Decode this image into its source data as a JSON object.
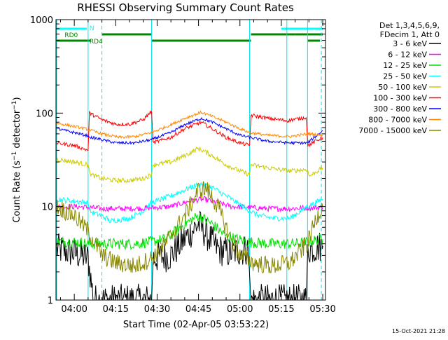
{
  "chart_data": {
    "type": "line",
    "title": "RHESSI Observing Summary Count Rates",
    "ylabel_main": "Count Rate (s",
    "ylabel_sup": "−1",
    "ylabel_mid": " detector",
    "ylabel_sup2": "−1",
    "ylabel_end": ")",
    "xlabel": "Start Time (02-Apr-05 03:53:22)",
    "footer": "15-Oct-2021 21:28",
    "y_scale": "log",
    "ylim": [
      1,
      1000
    ],
    "xlim": [
      "03:53:22",
      "05:31:00"
    ],
    "y_ticks": [
      "1",
      "10",
      "100",
      "1000"
    ],
    "x_ticks": [
      {
        "label": "04:00",
        "t": 240
      },
      {
        "label": "04:15",
        "t": 255
      },
      {
        "label": "04:30",
        "t": 270
      },
      {
        "label": "04:45",
        "t": 285
      },
      {
        "label": "05:00",
        "t": 300
      },
      {
        "label": "05:15",
        "t": 315
      },
      {
        "label": "05:30",
        "t": 330
      }
    ],
    "legend": {
      "header": [
        "Det 1,3,4,5,6,9,",
        "FDecim 1, Att 0"
      ],
      "entries": [
        {
          "label": "3 - 6 keV",
          "color": "#000000"
        },
        {
          "label": "6 - 12 keV",
          "color": "#ff00ff"
        },
        {
          "label": "12 - 25 keV",
          "color": "#00dd00"
        },
        {
          "label": "25 - 50 keV",
          "color": "#00ffff"
        },
        {
          "label": "50 - 100 keV",
          "color": "#cccc00"
        },
        {
          "label": "100 - 300 keV",
          "color": "#ff0000"
        },
        {
          "label": "300 - 800 keV",
          "color": "#0000ff"
        },
        {
          "label": "800 - 7000 keV",
          "color": "#ff8800"
        },
        {
          "label": "7000 - 15000 keV",
          "color": "#888800"
        }
      ]
    },
    "flags": [
      {
        "label": "N",
        "color": "#00ffff",
        "segments": [
          [
            233.6,
            244.5
          ],
          [
            315,
            330
          ]
        ]
      },
      {
        "label": "RD0",
        "color": "#008800",
        "segments": [
          [
            250,
            268
          ],
          [
            304,
            320
          ],
          [
            320,
            330
          ]
        ]
      },
      {
        "label": "RD4",
        "color": "#008800",
        "segments": [
          [
            233.6,
            246
          ],
          [
            268,
            304
          ],
          [
            324.5,
            329
          ]
        ]
      }
    ],
    "vlines_solid": [
      233.6,
      245,
      268,
      303.5,
      317,
      324.5
    ],
    "vlines_dashed": [
      250,
      329.5
    ],
    "series": [
      {
        "name": "3 - 6 keV",
        "color": "#000000",
        "points": [
          [
            233.6,
            3.5
          ],
          [
            240,
            3.2
          ],
          [
            245,
            2.8
          ],
          [
            247,
            1.0
          ],
          [
            260,
            1.0
          ],
          [
            268,
            1.0
          ],
          [
            268.5,
            2.8
          ],
          [
            275,
            3.0
          ],
          [
            280,
            4.5
          ],
          [
            285,
            6.5
          ],
          [
            288,
            5
          ],
          [
            292,
            3.5
          ],
          [
            296,
            3.2
          ],
          [
            303,
            3.5
          ],
          [
            304,
            1.0
          ],
          [
            324,
            1.0
          ],
          [
            324.6,
            3.5
          ],
          [
            330,
            3.8
          ]
        ]
      },
      {
        "name": "6 - 12 keV",
        "color": "#ff00ff",
        "points": [
          [
            233.6,
            10
          ],
          [
            240,
            10
          ],
          [
            245,
            9.8
          ],
          [
            250,
            9.5
          ],
          [
            260,
            9.5
          ],
          [
            268,
            9.7
          ],
          [
            275,
            10
          ],
          [
            282,
            11.5
          ],
          [
            287,
            12
          ],
          [
            292,
            11
          ],
          [
            297,
            10
          ],
          [
            303,
            9.8
          ],
          [
            310,
            9.5
          ],
          [
            318,
            9.5
          ],
          [
            324.5,
            9.7
          ],
          [
            330,
            9.8
          ]
        ]
      },
      {
        "name": "12 - 25 keV",
        "color": "#00dd00",
        "points": [
          [
            233.6,
            4.2
          ],
          [
            240,
            4.2
          ],
          [
            245,
            4.0
          ],
          [
            250,
            4.0
          ],
          [
            262,
            4.0
          ],
          [
            268,
            4.2
          ],
          [
            273,
            4.5
          ],
          [
            280,
            6.5
          ],
          [
            285,
            8
          ],
          [
            290,
            6.5
          ],
          [
            295,
            4.8
          ],
          [
            303,
            4.2
          ],
          [
            310,
            4.0
          ],
          [
            320,
            4.0
          ],
          [
            324.5,
            4.2
          ],
          [
            330,
            4.5
          ]
        ]
      },
      {
        "name": "25 - 50 keV",
        "color": "#00ffff",
        "points": [
          [
            233.6,
            12
          ],
          [
            245,
            11
          ],
          [
            245.5,
            9
          ],
          [
            247,
            8.5
          ],
          [
            250,
            8
          ],
          [
            253,
            7
          ],
          [
            260,
            7.5
          ],
          [
            265,
            9
          ],
          [
            268,
            11
          ],
          [
            275,
            13
          ],
          [
            282,
            16
          ],
          [
            286,
            17.5
          ],
          [
            290,
            16
          ],
          [
            295,
            13
          ],
          [
            300,
            10.5
          ],
          [
            303.5,
            9
          ],
          [
            307,
            8
          ],
          [
            312,
            7.5
          ],
          [
            318,
            7.5
          ],
          [
            324.5,
            10
          ],
          [
            330,
            12
          ]
        ]
      },
      {
        "name": "50 - 100 keV",
        "color": "#cccc00",
        "points": [
          [
            233.6,
            32
          ],
          [
            240,
            30
          ],
          [
            245,
            28
          ],
          [
            246,
            22
          ],
          [
            250,
            20
          ],
          [
            255,
            19
          ],
          [
            260,
            19
          ],
          [
            265,
            20
          ],
          [
            268,
            22
          ],
          [
            268.5,
            28
          ],
          [
            275,
            30
          ],
          [
            280,
            35
          ],
          [
            285,
            42
          ],
          [
            290,
            35
          ],
          [
            295,
            28
          ],
          [
            300,
            24
          ],
          [
            303.5,
            22
          ],
          [
            304,
            28
          ],
          [
            310,
            26
          ],
          [
            318,
            24
          ],
          [
            324.5,
            25
          ],
          [
            325,
            21
          ],
          [
            330,
            26
          ]
        ]
      },
      {
        "name": "100 - 300 keV",
        "color": "#ff0000",
        "points": [
          [
            233.6,
            48
          ],
          [
            240,
            45
          ],
          [
            245,
            40
          ],
          [
            245.5,
            100
          ],
          [
            250,
            85
          ],
          [
            255,
            76
          ],
          [
            260,
            76
          ],
          [
            265,
            85
          ],
          [
            268,
            105
          ],
          [
            268.5,
            48
          ],
          [
            275,
            55
          ],
          [
            280,
            68
          ],
          [
            286,
            80
          ],
          [
            290,
            68
          ],
          [
            295,
            55
          ],
          [
            300,
            48
          ],
          [
            303.5,
            45
          ],
          [
            304,
            95
          ],
          [
            310,
            88
          ],
          [
            317,
            83
          ],
          [
            324,
            90
          ],
          [
            324.6,
            45
          ],
          [
            330,
            55
          ]
        ]
      },
      {
        "name": "300 - 800 keV",
        "color": "#0000ff",
        "points": [
          [
            233.6,
            68
          ],
          [
            240,
            62
          ],
          [
            245,
            57
          ],
          [
            246,
            55
          ],
          [
            250,
            52
          ],
          [
            255,
            48
          ],
          [
            262,
            48
          ],
          [
            268,
            52
          ],
          [
            275,
            62
          ],
          [
            280,
            75
          ],
          [
            286,
            88
          ],
          [
            290,
            80
          ],
          [
            295,
            68
          ],
          [
            300,
            58
          ],
          [
            303.5,
            55
          ],
          [
            310,
            50
          ],
          [
            318,
            48
          ],
          [
            324.5,
            48
          ],
          [
            330,
            65
          ]
        ]
      },
      {
        "name": "800 - 7000 keV",
        "color": "#ff8800",
        "points": [
          [
            233.6,
            78
          ],
          [
            240,
            72
          ],
          [
            245,
            67
          ],
          [
            250,
            60
          ],
          [
            256,
            55
          ],
          [
            262,
            56
          ],
          [
            268,
            62
          ],
          [
            275,
            75
          ],
          [
            280,
            88
          ],
          [
            286,
            102
          ],
          [
            290,
            92
          ],
          [
            295,
            80
          ],
          [
            300,
            68
          ],
          [
            303.5,
            62
          ],
          [
            310,
            58
          ],
          [
            318,
            56
          ],
          [
            324.5,
            60
          ],
          [
            330,
            58
          ]
        ]
      },
      {
        "name": "7000 - 15000 keV",
        "color": "#888800",
        "points": [
          [
            233.6,
            10
          ],
          [
            240,
            8
          ],
          [
            245,
            5.5
          ],
          [
            250,
            3
          ],
          [
            255,
            2.5
          ],
          [
            262,
            2.3
          ],
          [
            268,
            2.8
          ],
          [
            273,
            4
          ],
          [
            280,
            8
          ],
          [
            285,
            15
          ],
          [
            288,
            15.5
          ],
          [
            292,
            10
          ],
          [
            296,
            5
          ],
          [
            300,
            3
          ],
          [
            305,
            2.5
          ],
          [
            312,
            2.3
          ],
          [
            318,
            2.5
          ],
          [
            324.5,
            4
          ],
          [
            328,
            8
          ],
          [
            330,
            10
          ]
        ]
      }
    ]
  }
}
